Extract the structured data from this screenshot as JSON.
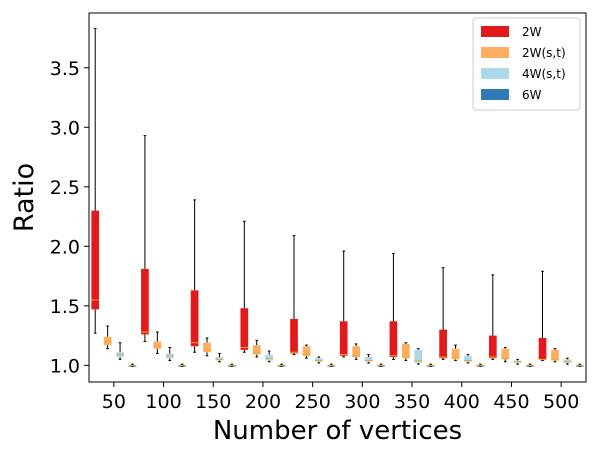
{
  "chart_data": {
    "type": "box",
    "xlabel": "Number of vertices",
    "ylabel": "Ratio",
    "ylim": [
      0.86,
      3.96
    ],
    "categories": [
      "50",
      "100",
      "150",
      "200",
      "250",
      "300",
      "350",
      "400",
      "450",
      "500"
    ],
    "yticks": [
      "1.0",
      "1.5",
      "2.0",
      "2.5",
      "3.0",
      "3.5"
    ],
    "legend_position": "top-right",
    "median_color": "#f5a623",
    "series": [
      {
        "name": "2W",
        "color": "#e31a1c",
        "boxes": [
          {
            "min": 1.27,
            "q1": 1.47,
            "median": 1.55,
            "q3": 2.3,
            "max": 3.83
          },
          {
            "min": 1.2,
            "q1": 1.26,
            "median": 1.28,
            "q3": 1.81,
            "max": 2.93
          },
          {
            "min": 1.11,
            "q1": 1.16,
            "median": 1.19,
            "q3": 1.63,
            "max": 2.39
          },
          {
            "min": 1.11,
            "q1": 1.13,
            "median": 1.15,
            "q3": 1.48,
            "max": 2.21
          },
          {
            "min": 1.09,
            "q1": 1.1,
            "median": 1.11,
            "q3": 1.39,
            "max": 2.09
          },
          {
            "min": 1.07,
            "q1": 1.08,
            "median": 1.09,
            "q3": 1.37,
            "max": 1.96
          },
          {
            "min": 1.05,
            "q1": 1.07,
            "median": 1.08,
            "q3": 1.37,
            "max": 1.94
          },
          {
            "min": 1.05,
            "q1": 1.06,
            "median": 1.07,
            "q3": 1.3,
            "max": 1.82
          },
          {
            "min": 1.05,
            "q1": 1.06,
            "median": 1.07,
            "q3": 1.25,
            "max": 1.76
          },
          {
            "min": 1.04,
            "q1": 1.05,
            "median": 1.05,
            "q3": 1.23,
            "max": 1.79
          }
        ]
      },
      {
        "name": "2W(s,t)",
        "color": "#fdae61",
        "boxes": [
          {
            "min": 1.14,
            "q1": 1.17,
            "median": 1.2,
            "q3": 1.24,
            "max": 1.33
          },
          {
            "min": 1.1,
            "q1": 1.14,
            "median": 1.16,
            "q3": 1.2,
            "max": 1.28
          },
          {
            "min": 1.08,
            "q1": 1.11,
            "median": 1.13,
            "q3": 1.19,
            "max": 1.23
          },
          {
            "min": 1.07,
            "q1": 1.09,
            "median": 1.11,
            "q3": 1.17,
            "max": 1.21
          },
          {
            "min": 1.06,
            "q1": 1.08,
            "median": 1.09,
            "q3": 1.16,
            "max": 1.17
          },
          {
            "min": 1.05,
            "q1": 1.07,
            "median": 1.08,
            "q3": 1.16,
            "max": 1.18
          },
          {
            "min": 1.04,
            "q1": 1.06,
            "median": 1.07,
            "q3": 1.18,
            "max": 1.19
          },
          {
            "min": 1.04,
            "q1": 1.05,
            "median": 1.07,
            "q3": 1.14,
            "max": 1.17
          },
          {
            "min": 1.03,
            "q1": 1.05,
            "median": 1.06,
            "q3": 1.14,
            "max": 1.15
          },
          {
            "min": 1.03,
            "q1": 1.04,
            "median": 1.05,
            "q3": 1.13,
            "max": 1.14
          }
        ]
      },
      {
        "name": "4W(s,t)",
        "color": "#abd9e9",
        "boxes": [
          {
            "min": 1.05,
            "q1": 1.07,
            "median": 1.09,
            "q3": 1.11,
            "max": 1.19
          },
          {
            "min": 1.04,
            "q1": 1.06,
            "median": 1.08,
            "q3": 1.1,
            "max": 1.15
          },
          {
            "min": 1.03,
            "q1": 1.04,
            "median": 1.05,
            "q3": 1.07,
            "max": 1.1
          },
          {
            "min": 1.03,
            "q1": 1.04,
            "median": 1.06,
            "q3": 1.09,
            "max": 1.12
          },
          {
            "min": 1.02,
            "q1": 1.03,
            "median": 1.04,
            "q3": 1.06,
            "max": 1.07
          },
          {
            "min": 1.02,
            "q1": 1.03,
            "median": 1.04,
            "q3": 1.07,
            "max": 1.09
          },
          {
            "min": 1.01,
            "q1": 1.02,
            "median": 1.04,
            "q3": 1.13,
            "max": 1.14
          },
          {
            "min": 1.02,
            "q1": 1.03,
            "median": 1.04,
            "q3": 1.08,
            "max": 1.09
          },
          {
            "min": 1.01,
            "q1": 1.02,
            "median": 1.03,
            "q3": 1.04,
            "max": 1.05
          },
          {
            "min": 1.01,
            "q1": 1.02,
            "median": 1.03,
            "q3": 1.05,
            "max": 1.06
          }
        ]
      },
      {
        "name": "6W",
        "color": "#2c7bb6",
        "boxes": [
          {
            "min": 0.99,
            "q1": 0.99,
            "median": 1.0,
            "q3": 1.0,
            "max": 1.01
          },
          {
            "min": 0.99,
            "q1": 0.99,
            "median": 1.0,
            "q3": 1.0,
            "max": 1.01
          },
          {
            "min": 0.99,
            "q1": 0.99,
            "median": 1.0,
            "q3": 1.0,
            "max": 1.01
          },
          {
            "min": 0.99,
            "q1": 0.99,
            "median": 1.0,
            "q3": 1.0,
            "max": 1.01
          },
          {
            "min": 0.99,
            "q1": 0.99,
            "median": 1.0,
            "q3": 1.0,
            "max": 1.01
          },
          {
            "min": 0.99,
            "q1": 0.99,
            "median": 1.0,
            "q3": 1.0,
            "max": 1.01
          },
          {
            "min": 0.99,
            "q1": 0.99,
            "median": 1.0,
            "q3": 1.0,
            "max": 1.01
          },
          {
            "min": 0.99,
            "q1": 0.99,
            "median": 1.0,
            "q3": 1.0,
            "max": 1.01
          },
          {
            "min": 0.99,
            "q1": 0.99,
            "median": 1.0,
            "q3": 1.0,
            "max": 1.01
          },
          {
            "min": 0.99,
            "q1": 0.99,
            "median": 1.0,
            "q3": 1.0,
            "max": 1.01
          }
        ]
      }
    ]
  }
}
